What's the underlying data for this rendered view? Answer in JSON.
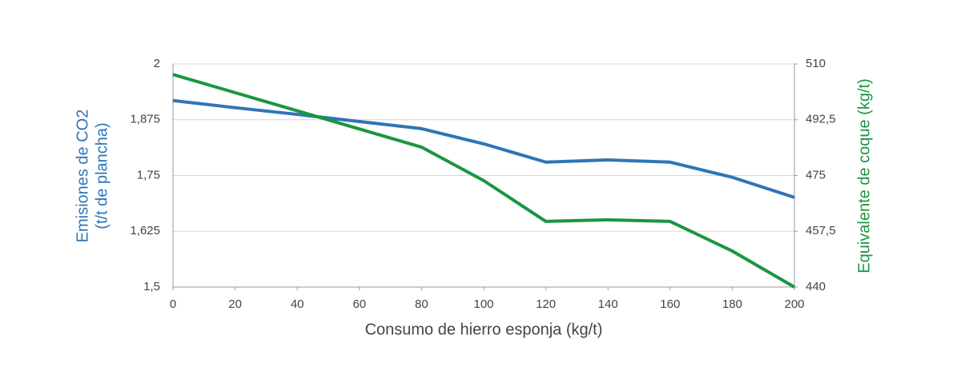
{
  "chart_data": {
    "type": "line",
    "xlabel": "Consumo de hierro esponja (kg/t)",
    "ylabel": [
      "Emisiones de CO2",
      "(t/t de plancha)"
    ],
    "y2label": "Equivalente de coque (kg/t)",
    "x": [
      0,
      20,
      40,
      60,
      80,
      100,
      120,
      140,
      160,
      180,
      200
    ],
    "xlim": [
      0,
      200
    ],
    "xticks": [
      0,
      20,
      40,
      60,
      80,
      100,
      120,
      140,
      160,
      180,
      200
    ],
    "ylim": [
      1.5,
      2
    ],
    "yticks": [
      {
        "value": 1.5,
        "label": "1,5"
      },
      {
        "value": 1.625,
        "label": "1,625"
      },
      {
        "value": 1.75,
        "label": "1,75"
      },
      {
        "value": 1.875,
        "label": "1,875"
      },
      2
    ],
    "y2lim": [
      440,
      510
    ],
    "y2ticks": [
      440,
      {
        "value": 457.5,
        "label": "457,5"
      },
      475,
      {
        "value": 492.5,
        "label": "492,5"
      },
      510
    ],
    "grid": true,
    "series": [
      {
        "name": "Emisiones de CO2",
        "color": "#2e75b6",
        "values": [
          1.918,
          1.902,
          1.887,
          1.871,
          1.855,
          1.821,
          1.78,
          1.785,
          1.78,
          1.746,
          1.701
        ]
      },
      {
        "name": "Equivalente de coque",
        "color": "#1a9641",
        "axis": "y2",
        "values": [
          506.7,
          501.0,
          495.3,
          489.6,
          483.9,
          473.4,
          460.6,
          461.1,
          460.6,
          451.3,
          440
        ]
      }
    ]
  }
}
